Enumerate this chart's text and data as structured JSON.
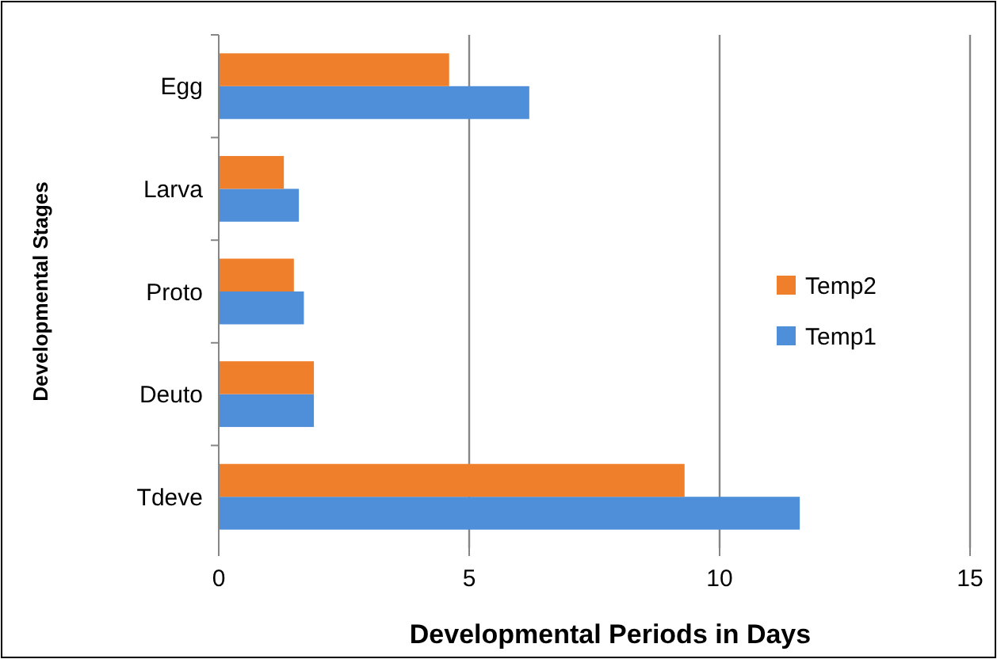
{
  "chart_data": {
    "type": "bar",
    "orientation": "horizontal",
    "xlabel": "Developmental Periods in Days",
    "ylabel": "Developmental Stages",
    "categories": [
      "Egg",
      "Larva",
      "Proto",
      "Deuto",
      "Tdeve"
    ],
    "series": [
      {
        "name": "Temp1",
        "color": "#4f8fd9",
        "values": [
          6.2,
          1.6,
          1.7,
          1.9,
          11.6
        ]
      },
      {
        "name": "Temp2",
        "color": "#f07f2b",
        "values": [
          4.6,
          1.3,
          1.5,
          1.9,
          9.3
        ]
      }
    ],
    "xlim": [
      0,
      15
    ],
    "xticks": [
      0,
      5,
      10,
      15
    ],
    "grid": "x",
    "legend": "right"
  }
}
